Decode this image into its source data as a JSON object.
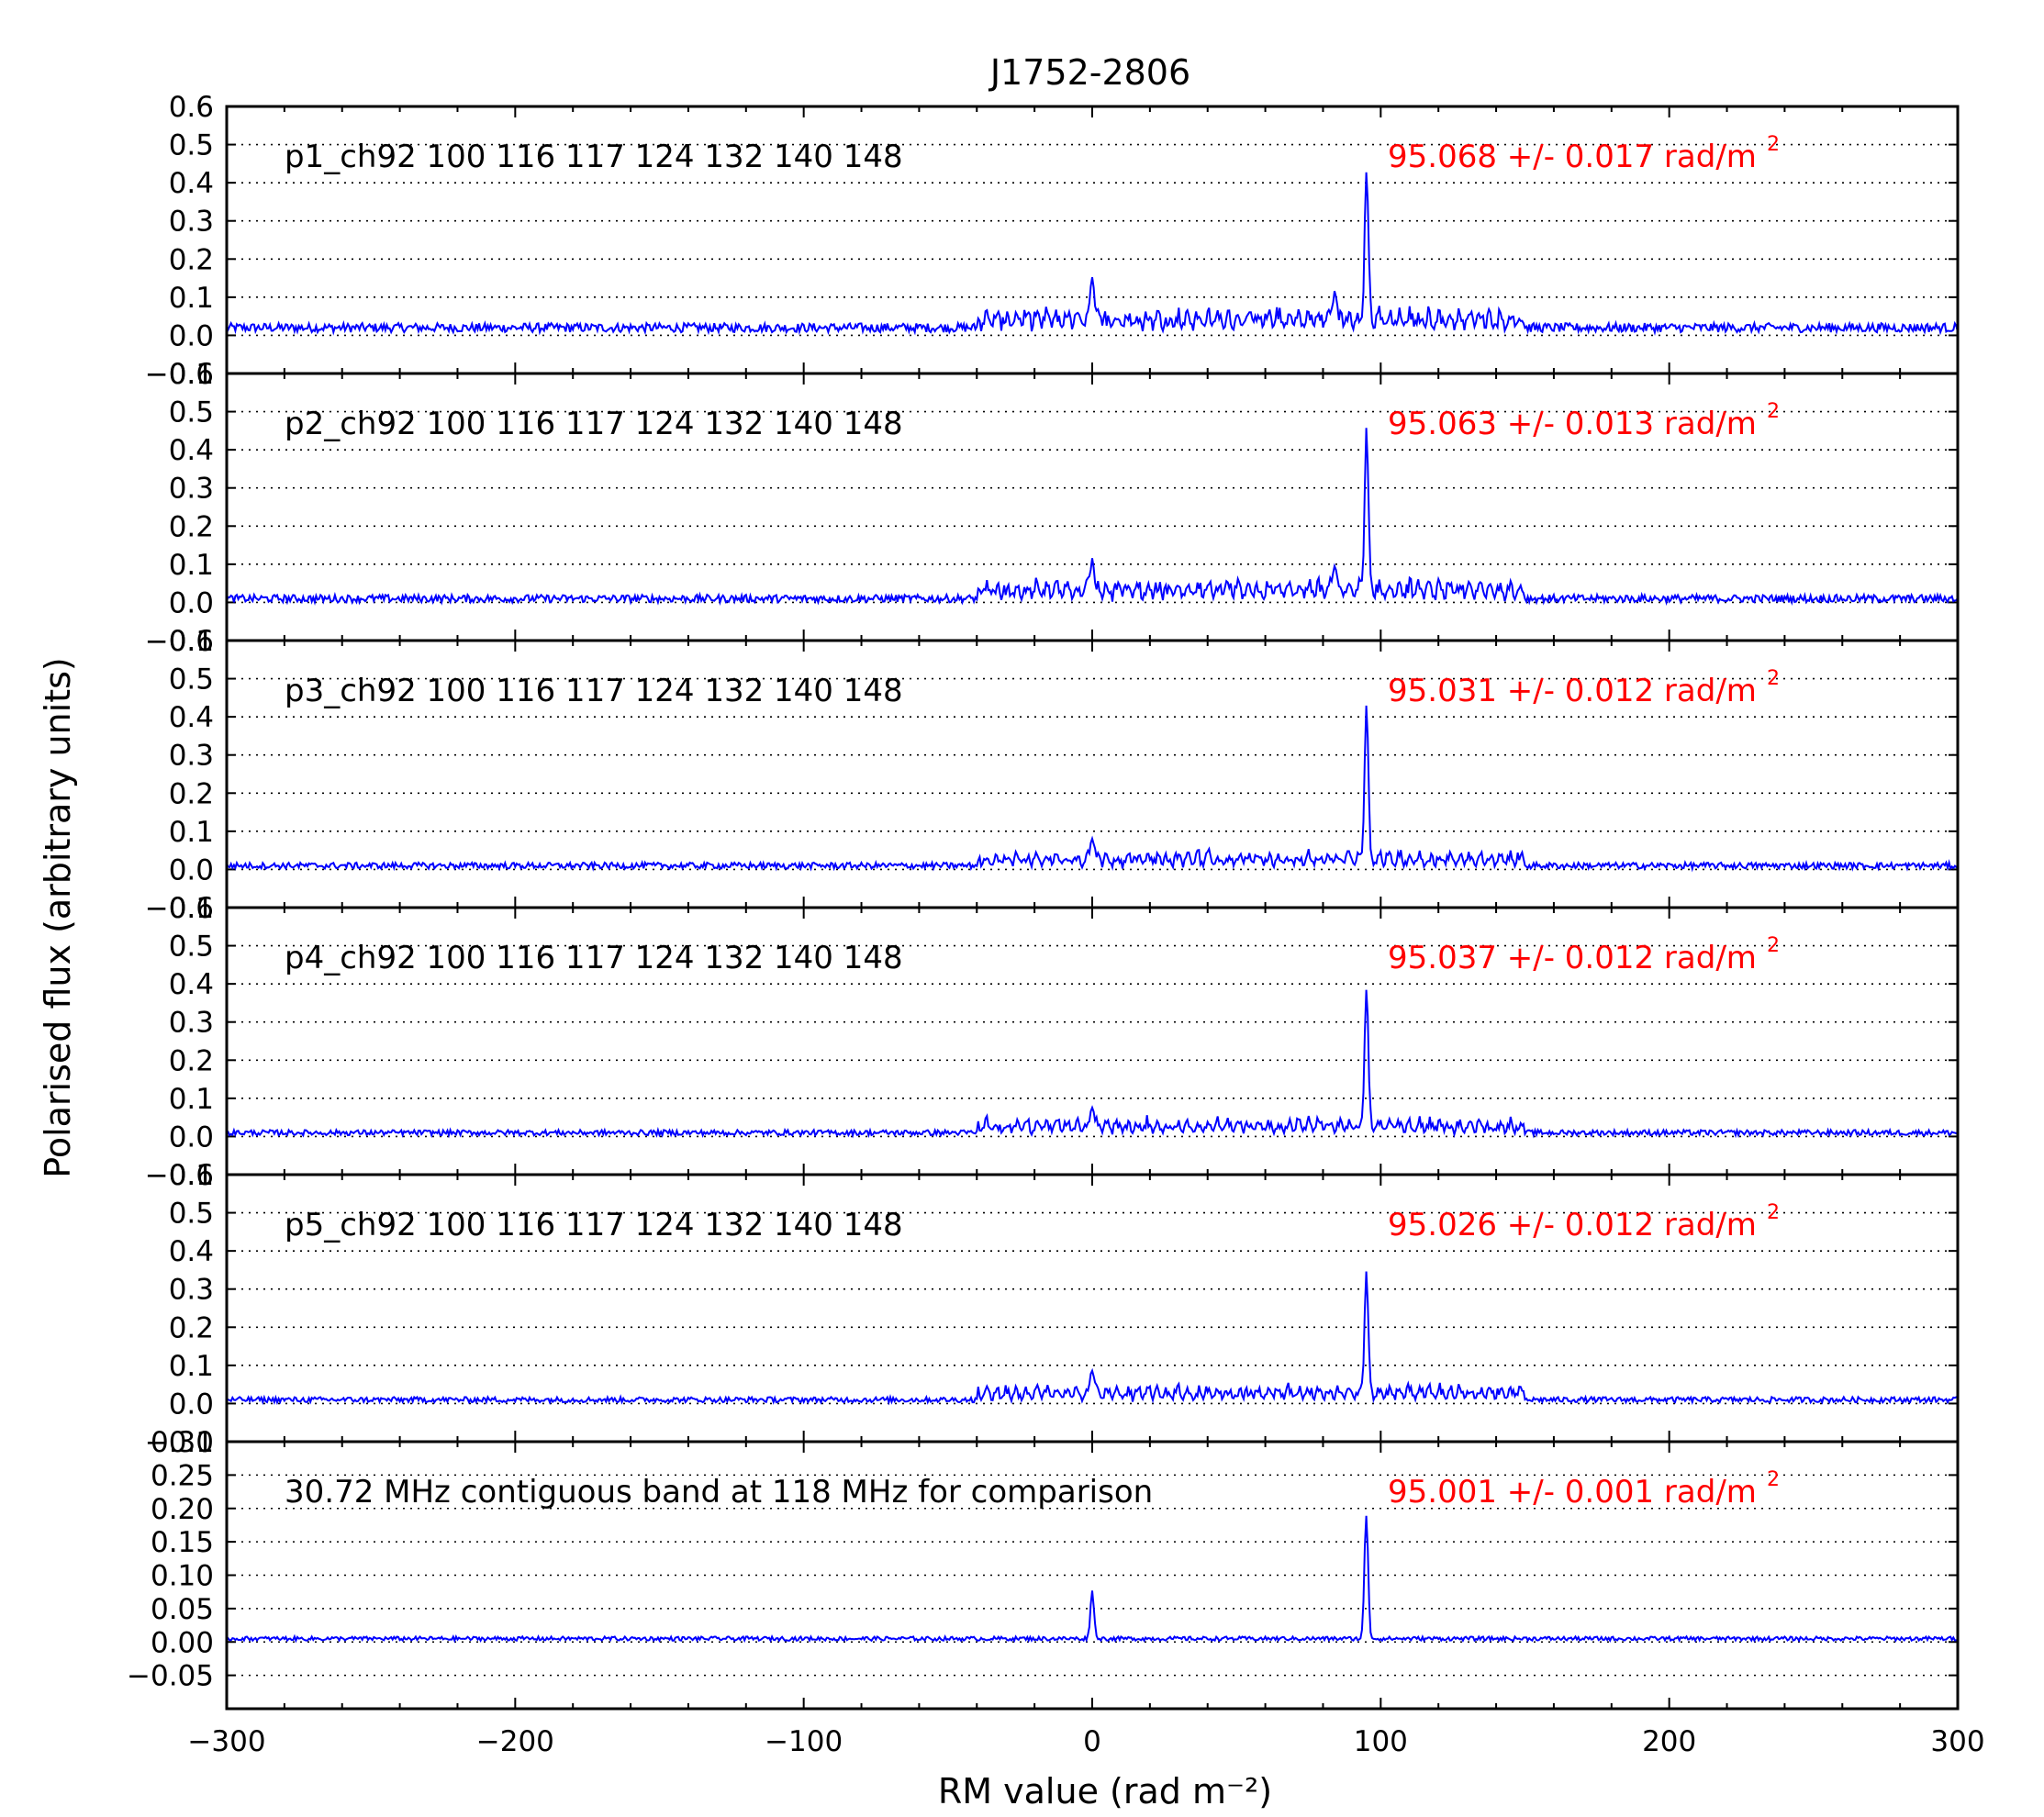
{
  "figure": {
    "title": "J1752-2806",
    "xlabel": "RM value (rad m⁻²)",
    "ylabel": "Polarised flux (arbitrary units)",
    "colors": {
      "line": "#0000ff",
      "annotation": "#ff0000",
      "axes": "#000000",
      "grid": "#000000"
    }
  },
  "chart_data": [
    {
      "type": "line",
      "label": "p1_ch92 100 116 117 124 132 140 148",
      "rm_annotation": "95.068 +/- 0.017 rad/m",
      "rm_annotation_exponent": "2",
      "xlim": [
        -300,
        300
      ],
      "ylim": [
        -0.1,
        0.6
      ],
      "yticks": [
        "−0.1",
        "0.0",
        "0.1",
        "0.2",
        "0.3",
        "0.4",
        "0.5",
        "0.6"
      ],
      "ytick_values": [
        -0.1,
        0.0,
        0.1,
        0.2,
        0.3,
        0.4,
        0.5,
        0.6
      ],
      "grid": "horizontal-dotted",
      "series": [
        {
          "baseline": 0.02,
          "noise": 0.012,
          "peaks": [
            {
              "x": 95.068,
              "y": 0.41
            },
            {
              "x": 0.0,
              "y": 0.15
            },
            {
              "x": 84,
              "y": 0.11
            }
          ],
          "sidelobe": 0.05
        }
      ]
    },
    {
      "type": "line",
      "label": "p2_ch92 100 116 117 124 132 140 148",
      "rm_annotation": "95.063 +/- 0.013 rad/m",
      "rm_annotation_exponent": "2",
      "xlim": [
        -300,
        300
      ],
      "ylim": [
        -0.1,
        0.6
      ],
      "yticks": [
        "−0.1",
        "0.0",
        "0.1",
        "0.2",
        "0.3",
        "0.4",
        "0.5",
        "0.6"
      ],
      "ytick_values": [
        -0.1,
        0.0,
        0.1,
        0.2,
        0.3,
        0.4,
        0.5,
        0.6
      ],
      "grid": "horizontal-dotted",
      "series": [
        {
          "baseline": 0.01,
          "noise": 0.01,
          "peaks": [
            {
              "x": 95.063,
              "y": 0.43
            },
            {
              "x": 0.0,
              "y": 0.11
            },
            {
              "x": 84,
              "y": 0.09
            }
          ],
          "sidelobe": 0.05
        }
      ]
    },
    {
      "type": "line",
      "label": "p3_ch92 100 116 117 124 132 140 148",
      "rm_annotation": "95.031 +/- 0.012 rad/m",
      "rm_annotation_exponent": "2",
      "xlim": [
        -300,
        300
      ],
      "ylim": [
        -0.1,
        0.6
      ],
      "yticks": [
        "−0.1",
        "0.0",
        "0.1",
        "0.2",
        "0.3",
        "0.4",
        "0.5",
        "0.6"
      ],
      "ytick_values": [
        -0.1,
        0.0,
        0.1,
        0.2,
        0.3,
        0.4,
        0.5,
        0.6
      ],
      "grid": "horizontal-dotted",
      "series": [
        {
          "baseline": 0.01,
          "noise": 0.008,
          "peaks": [
            {
              "x": 95.031,
              "y": 0.41
            },
            {
              "x": 0.0,
              "y": 0.08
            }
          ],
          "sidelobe": 0.04
        }
      ]
    },
    {
      "type": "line",
      "label": "p4_ch92 100 116 117 124 132 140 148",
      "rm_annotation": "95.037 +/- 0.012 rad/m",
      "rm_annotation_exponent": "2",
      "xlim": [
        -300,
        300
      ],
      "ylim": [
        -0.1,
        0.6
      ],
      "yticks": [
        "−0.1",
        "0.0",
        "0.1",
        "0.2",
        "0.3",
        "0.4",
        "0.5",
        "0.6"
      ],
      "ytick_values": [
        -0.1,
        0.0,
        0.1,
        0.2,
        0.3,
        0.4,
        0.5,
        0.6
      ],
      "grid": "horizontal-dotted",
      "series": [
        {
          "baseline": 0.01,
          "noise": 0.007,
          "peaks": [
            {
              "x": 95.037,
              "y": 0.37
            },
            {
              "x": 0.0,
              "y": 0.07
            }
          ],
          "sidelobe": 0.04
        }
      ]
    },
    {
      "type": "line",
      "label": "p5_ch92 100 116 117 124 132 140 148",
      "rm_annotation": "95.026 +/- 0.012 rad/m",
      "rm_annotation_exponent": "2",
      "xlim": [
        -300,
        300
      ],
      "ylim": [
        -0.1,
        0.6
      ],
      "yticks": [
        "−0.1",
        "0.0",
        "0.1",
        "0.2",
        "0.3",
        "0.4",
        "0.5",
        "0.6"
      ],
      "ytick_values": [
        -0.1,
        0.0,
        0.1,
        0.2,
        0.3,
        0.4,
        0.5,
        0.6
      ],
      "grid": "horizontal-dotted",
      "series": [
        {
          "baseline": 0.01,
          "noise": 0.007,
          "peaks": [
            {
              "x": 95.026,
              "y": 0.33
            },
            {
              "x": 0.0,
              "y": 0.09
            }
          ],
          "sidelobe": 0.04
        }
      ]
    },
    {
      "type": "line",
      "label": "30.72 MHz contiguous band at 118 MHz for comparison",
      "rm_annotation": "95.001 +/- 0.001 rad/m",
      "rm_annotation_exponent": "2",
      "xlim": [
        -300,
        300
      ],
      "ylim": [
        -0.1,
        0.3
      ],
      "yticks": [
        "−0.05",
        "0.00",
        "0.05",
        "0.10",
        "0.15",
        "0.20",
        "0.25",
        "0.30"
      ],
      "ytick_values": [
        -0.05,
        0.0,
        0.05,
        0.1,
        0.15,
        0.2,
        0.25,
        0.3
      ],
      "grid": "horizontal-dotted",
      "series": [
        {
          "baseline": 0.005,
          "noise": 0.003,
          "peaks": [
            {
              "x": 95.001,
              "y": 0.19
            },
            {
              "x": 0.0,
              "y": 0.075
            }
          ],
          "sidelobe": 0.0
        }
      ]
    }
  ],
  "xaxis": {
    "ticks": [
      "−300",
      "−200",
      "−100",
      "0",
      "100",
      "200",
      "300"
    ],
    "tick_values": [
      -300,
      -200,
      -100,
      0,
      100,
      200,
      300
    ]
  }
}
